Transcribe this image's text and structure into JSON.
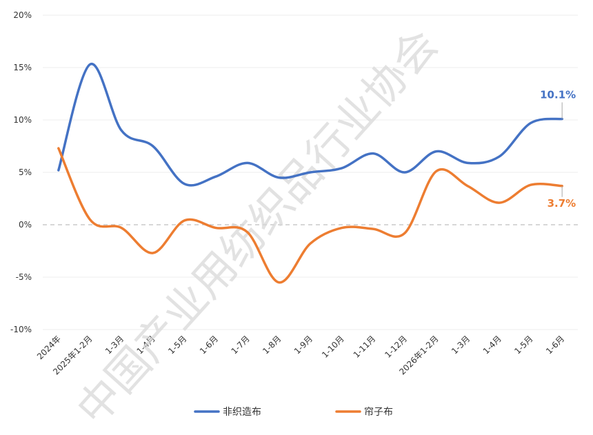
{
  "chart_data": {
    "type": "line",
    "categories": [
      "2024年",
      "2025年1-2月",
      "1-3月",
      "1-4月",
      "1-5月",
      "1-6月",
      "1-7月",
      "1-8月",
      "1-9月",
      "1-10月",
      "1-11月",
      "1-12月",
      "2026年1-2月",
      "1-3月",
      "1-4月",
      "1-5月",
      "1-6月"
    ],
    "y_ticks": [
      "20%",
      "15%",
      "10%",
      "5%",
      "0%",
      "-5%",
      "-10%"
    ],
    "ylim": [
      -10,
      20
    ],
    "grid": true,
    "zero_line": "dashed",
    "legend_position": "bottom",
    "series": [
      {
        "name": "非织造布",
        "color": "#4472C4",
        "values": [
          5.2,
          15.3,
          9.0,
          7.5,
          3.9,
          4.6,
          5.9,
          4.5,
          5.0,
          5.4,
          6.8,
          5.0,
          7.0,
          5.9,
          6.5,
          9.7,
          10.1
        ],
        "end_label": "10.1%"
      },
      {
        "name": "帘子布",
        "color": "#ED7D31",
        "values": [
          7.3,
          0.5,
          -0.3,
          -2.7,
          0.4,
          -0.3,
          -0.7,
          -5.5,
          -1.8,
          -0.3,
          -0.4,
          -0.8,
          5.1,
          3.7,
          2.1,
          3.8,
          3.7
        ],
        "end_label": "3.7%"
      }
    ]
  },
  "watermark": "中国产业用纺织品行业协会"
}
